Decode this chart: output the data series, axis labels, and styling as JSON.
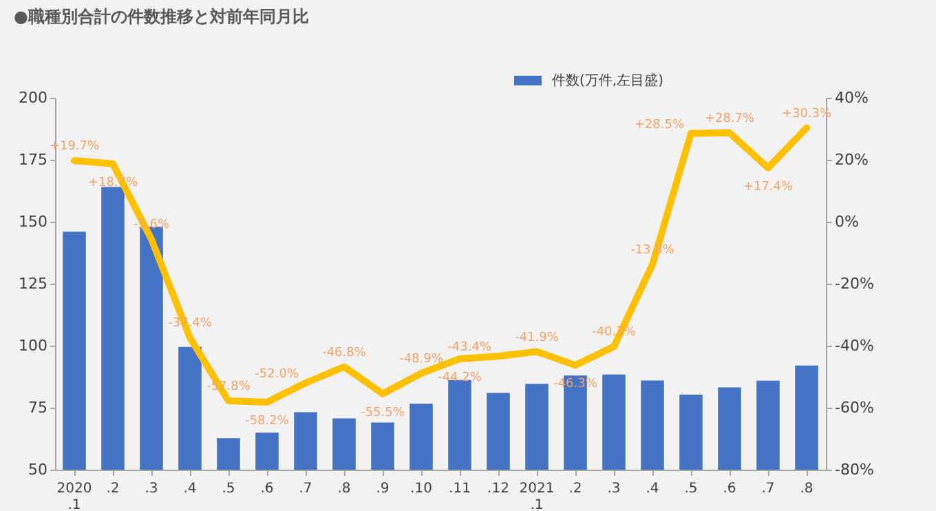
{
  "chart_data": {
    "type": "bar",
    "title": "●職種別合計の件数推移と対前年同月比",
    "categories": [
      "2020\n.1",
      ".2",
      ".3",
      ".4",
      ".5",
      ".6",
      ".7",
      ".8",
      ".9",
      ".10",
      ".11",
      ".12",
      "2021\n.1",
      ".2",
      ".3",
      ".4",
      ".5",
      ".6",
      ".7",
      ".8"
    ],
    "series": [
      {
        "name": "件数(万件,左目盛)",
        "type": "bar",
        "color": "#4472c4",
        "values": [
          146,
          164,
          148,
          99.5,
          62.7,
          64.9,
          73.2,
          70.7,
          69.0,
          76.6,
          86.2,
          81.0,
          84.6,
          88.0,
          88.4,
          86.0,
          80.3,
          83.2,
          85.9,
          92.0
        ]
      },
      {
        "type": "line",
        "axis": "y2",
        "color": "#ffc000",
        "values": [
          19.7,
          18.7,
          -5.6,
          -37.4,
          -57.8,
          -58.2,
          -52.0,
          -46.8,
          -55.5,
          -48.9,
          -44.2,
          -43.4,
          -41.9,
          -46.3,
          -40.3,
          -13.8,
          28.5,
          28.7,
          17.4,
          30.3
        ],
        "value_labels": [
          "+19.7%",
          "+18.7%",
          "-5.6%",
          "-37.4%",
          "-57.8%",
          "-58.2%",
          "-52.0%",
          "-46.8%",
          "-55.5%",
          "-48.9%",
          "-44.2%",
          "-43.4%",
          "-41.9%",
          "-46.3%",
          "-40.3%",
          "-13.8%",
          "+28.5%",
          "+28.7%",
          "+17.4%",
          "+30.3%"
        ]
      }
    ],
    "ylim": [
      50,
      200
    ],
    "yticks": [
      50,
      75,
      100,
      125,
      150,
      175,
      200
    ],
    "y2lim": [
      -80,
      40
    ],
    "y2ticks": [
      {
        "value": -80,
        "label": "-80%"
      },
      {
        "value": -60,
        "label": "-60%"
      },
      {
        "value": -40,
        "label": "-40%"
      },
      {
        "value": -20,
        "label": "-20%"
      },
      {
        "value": 0,
        "label": "0%"
      },
      {
        "value": 20,
        "label": "20%"
      },
      {
        "value": 40,
        "label": "40%"
      }
    ],
    "legend": "top right",
    "grid": false
  }
}
